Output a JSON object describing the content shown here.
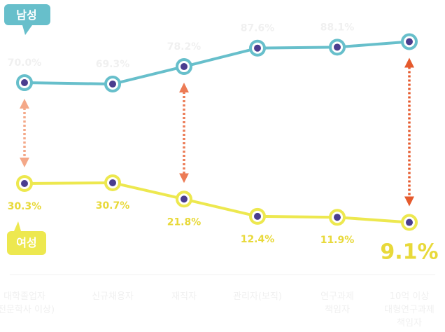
{
  "chart_data": {
    "type": "line",
    "categories": [
      [
        "대학졸업자",
        "(전문학사 이상)"
      ],
      [
        "신규채용자"
      ],
      [
        "재직자"
      ],
      [
        "관리자(보직)"
      ],
      [
        "연구과제",
        "책임자"
      ],
      [
        "10억 이상",
        "대형연구과제",
        "책임자"
      ]
    ],
    "series": [
      {
        "name": "남성",
        "values": [
          70.0,
          69.3,
          78.2,
          87.6,
          88.1,
          90.9
        ],
        "labels": [
          "70.0%",
          "69.3%",
          "78.2%",
          "87.6%",
          "88.1%",
          ""
        ],
        "color": "#67bfcb"
      },
      {
        "name": "여성",
        "values": [
          30.3,
          30.7,
          21.8,
          12.4,
          11.9,
          9.1
        ],
        "labels": [
          "30.3%",
          "30.7%",
          "21.8%",
          "12.4%",
          "11.9%",
          "9.1%"
        ],
        "color": "#ede84f"
      }
    ],
    "gap_arrow_colors": [
      "#f4a888",
      "#ec7b55",
      "#e55a2d"
    ],
    "point_fill": "#4a3d8f",
    "title": "",
    "xlabel": "",
    "ylabel": ""
  }
}
